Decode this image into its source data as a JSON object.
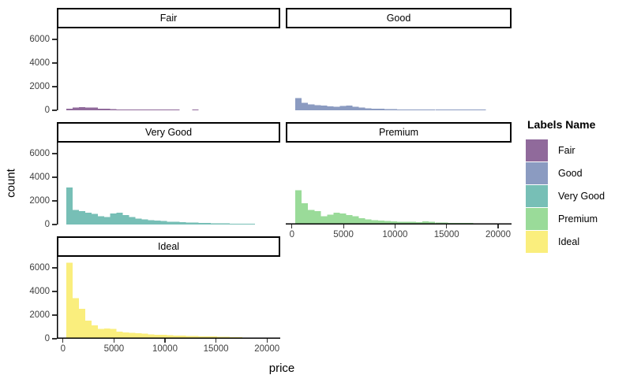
{
  "chart_data": {
    "type": "bar",
    "subtype": "faceted-histogram",
    "title": "",
    "xlabel": "price",
    "ylabel": "count",
    "grid": "off",
    "x_ticks": [
      0,
      5000,
      10000,
      15000,
      20000
    ],
    "y_ticks": [
      0,
      2000,
      4000,
      6000
    ],
    "x_domain": [
      -600,
      21300
    ],
    "y_domain": [
      0,
      6933
    ],
    "bin_start": 326,
    "bin_width": 616.6,
    "legend": {
      "title": "Labels Name",
      "position": "right",
      "entries": [
        {
          "label": "Fair",
          "color": "#906A9B"
        },
        {
          "label": "Good",
          "color": "#8B9BC1"
        },
        {
          "label": "Very Good",
          "color": "#77BFB6"
        },
        {
          "label": "Premium",
          "color": "#9ADB99"
        },
        {
          "label": "Ideal",
          "color": "#FAEE7D"
        }
      ]
    },
    "facets": [
      {
        "label": "Fair",
        "color": "#906A9B",
        "counts": [
          140,
          240,
          260,
          250,
          230,
          140,
          120,
          100,
          70,
          55,
          45,
          40,
          35,
          30,
          25,
          20,
          18,
          15,
          0,
          0,
          30,
          0,
          0,
          0,
          0,
          0,
          0,
          0,
          0,
          0
        ]
      },
      {
        "label": "Good",
        "color": "#8B9BC1",
        "counts": [
          1050,
          620,
          490,
          430,
          390,
          340,
          300,
          360,
          400,
          310,
          230,
          180,
          150,
          130,
          110,
          95,
          80,
          70,
          60,
          55,
          50,
          45,
          40,
          35,
          30,
          28,
          25,
          22,
          20,
          18
        ]
      },
      {
        "label": "Very Good",
        "color": "#77BFB6",
        "counts": [
          3150,
          1250,
          1150,
          1000,
          900,
          700,
          650,
          950,
          1000,
          800,
          620,
          500,
          430,
          380,
          330,
          290,
          250,
          220,
          200,
          180,
          160,
          140,
          120,
          110,
          100,
          90,
          80,
          70,
          60,
          50
        ]
      },
      {
        "label": "Premium",
        "color": "#9ADB99",
        "counts": [
          2900,
          1800,
          1250,
          1150,
          700,
          850,
          1000,
          950,
          800,
          700,
          550,
          450,
          380,
          330,
          300,
          270,
          250,
          230,
          220,
          210,
          260,
          230,
          180,
          160,
          150,
          140,
          130,
          120,
          110,
          80
        ]
      },
      {
        "label": "Ideal",
        "color": "#FAEE7D",
        "counts": [
          6450,
          3450,
          2530,
          1550,
          1130,
          820,
          870,
          830,
          600,
          540,
          500,
          460,
          420,
          380,
          350,
          320,
          300,
          280,
          260,
          240,
          220,
          210,
          200,
          190,
          180,
          160,
          140,
          120,
          100,
          80
        ]
      }
    ]
  }
}
